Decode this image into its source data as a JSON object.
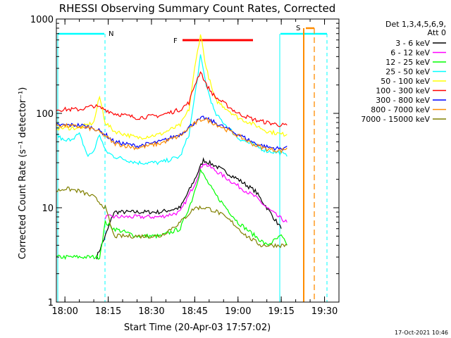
{
  "chart_data": {
    "type": "line",
    "title": "RHESSI Observing Summary Count Rates, Corrected",
    "xlabel": "Start Time (20-Apr-03 17:57:02)",
    "ylabel": "Corrected Count Rate (s⁻¹ detector⁻¹)",
    "yscale": "log",
    "ylim": [
      1,
      1000
    ],
    "xlim": [
      "17:57:02",
      "19:35:00"
    ],
    "x_ticks": [
      "18:00",
      "18:15",
      "18:30",
      "18:45",
      "19:00",
      "19:15",
      "19:30"
    ],
    "y_ticks": [
      "1",
      "10",
      "100",
      "1000"
    ],
    "grid": false,
    "legend_header": [
      "Det 1,3,4,5,6,9,",
      "Att 0"
    ],
    "legend_position": "top-right outside",
    "series": [
      {
        "name": "3 - 6 keV",
        "color": "#000000",
        "x": [
          "18:11",
          "18:14",
          "18:17",
          "18:25",
          "18:33",
          "18:40",
          "18:45",
          "18:48",
          "18:52",
          "19:00",
          "19:06",
          "19:10",
          "19:15"
        ],
        "y": [
          3,
          5,
          9,
          9,
          9,
          10,
          20,
          32,
          28,
          20,
          15,
          10,
          6
        ]
      },
      {
        "name": "6 - 12 keV",
        "color": "#ff00ff",
        "x": [
          "18:14",
          "18:17",
          "18:25",
          "18:33",
          "18:40",
          "18:45",
          "18:48",
          "18:52",
          "19:00",
          "19:06",
          "19:10",
          "19:14",
          "19:17"
        ],
        "y": [
          8,
          8,
          8,
          8,
          9,
          18,
          30,
          25,
          17,
          13,
          10,
          8,
          7
        ]
      },
      {
        "name": "12 - 25 keV",
        "color": "#00ff00",
        "x": [
          "17:57",
          "18:05",
          "18:12",
          "18:14",
          "18:17",
          "18:25",
          "18:33",
          "18:40",
          "18:44",
          "18:47",
          "18:52",
          "19:00",
          "19:06",
          "19:10",
          "19:15",
          "19:17"
        ],
        "y": [
          3,
          3,
          3,
          7,
          6,
          5,
          5,
          6,
          12,
          25,
          14,
          7,
          5,
          4,
          5,
          4
        ]
      },
      {
        "name": "25 - 50 keV",
        "color": "#00ffff",
        "x": [
          "17:57",
          "18:00",
          "18:05",
          "18:08",
          "18:10",
          "18:12",
          "18:14",
          "18:17",
          "18:25",
          "18:33",
          "18:40",
          "18:43",
          "18:45",
          "18:47",
          "18:49",
          "18:52",
          "19:00",
          "19:06",
          "19:10",
          "19:15",
          "19:17"
        ],
        "y": [
          60,
          50,
          60,
          35,
          40,
          60,
          40,
          35,
          30,
          30,
          35,
          60,
          150,
          400,
          200,
          100,
          55,
          45,
          40,
          38,
          35
        ]
      },
      {
        "name": "50 - 100 keV",
        "color": "#ffff00",
        "x": [
          "17:57",
          "18:05",
          "18:10",
          "18:12",
          "18:14",
          "18:17",
          "18:25",
          "18:33",
          "18:40",
          "18:43",
          "18:45",
          "18:47",
          "18:49",
          "18:52",
          "19:00",
          "19:06",
          "19:10",
          "19:15",
          "19:17"
        ],
        "y": [
          70,
          70,
          80,
          150,
          80,
          65,
          55,
          60,
          75,
          110,
          300,
          700,
          300,
          140,
          90,
          75,
          65,
          60,
          60
        ]
      },
      {
        "name": "100 - 300 keV",
        "color": "#ff0000",
        "x": [
          "17:57",
          "18:05",
          "18:10",
          "18:14",
          "18:17",
          "18:25",
          "18:33",
          "18:40",
          "18:43",
          "18:45",
          "18:47",
          "18:49",
          "18:52",
          "19:00",
          "19:06",
          "19:10",
          "19:15",
          "19:17"
        ],
        "y": [
          110,
          110,
          120,
          110,
          100,
          90,
          95,
          110,
          130,
          200,
          280,
          200,
          150,
          100,
          85,
          80,
          75,
          75
        ]
      },
      {
        "name": "300 - 800 keV",
        "color": "#0000ff",
        "x": [
          "17:57",
          "18:05",
          "18:10",
          "18:14",
          "18:17",
          "18:25",
          "18:33",
          "18:40",
          "18:45",
          "18:48",
          "18:52",
          "19:00",
          "19:06",
          "19:10",
          "19:15",
          "19:17"
        ],
        "y": [
          75,
          75,
          70,
          60,
          50,
          45,
          50,
          60,
          80,
          90,
          80,
          60,
          48,
          44,
          42,
          45
        ]
      },
      {
        "name": "800 - 7000 keV",
        "color": "#ff8c00",
        "x": [
          "17:57",
          "18:05",
          "18:10",
          "18:14",
          "18:17",
          "18:25",
          "18:33",
          "18:40",
          "18:45",
          "18:48",
          "18:52",
          "19:00",
          "19:06",
          "19:10",
          "19:15",
          "19:17"
        ],
        "y": [
          75,
          72,
          68,
          58,
          48,
          43,
          48,
          58,
          78,
          88,
          78,
          58,
          46,
          42,
          40,
          43
        ]
      },
      {
        "name": "7000 - 15000 keV",
        "color": "#808000",
        "x": [
          "17:57",
          "18:00",
          "18:05",
          "18:10",
          "18:14",
          "18:17",
          "18:25",
          "18:33",
          "18:40",
          "18:45",
          "18:49",
          "18:53",
          "18:58",
          "19:03",
          "19:08",
          "19:12",
          "19:17"
        ],
        "y": [
          15,
          16,
          15,
          13,
          10,
          5,
          5,
          5,
          7,
          10,
          10,
          9,
          7,
          5,
          4,
          4,
          4
        ]
      }
    ],
    "flag_lines": [
      {
        "label": "N",
        "color": "#00ffff"
      },
      {
        "label": "F",
        "color": "#ff0000"
      },
      {
        "label": "S",
        "color": "#ff8c00"
      }
    ],
    "footer_date": "17-Oct-2021 10:46"
  }
}
